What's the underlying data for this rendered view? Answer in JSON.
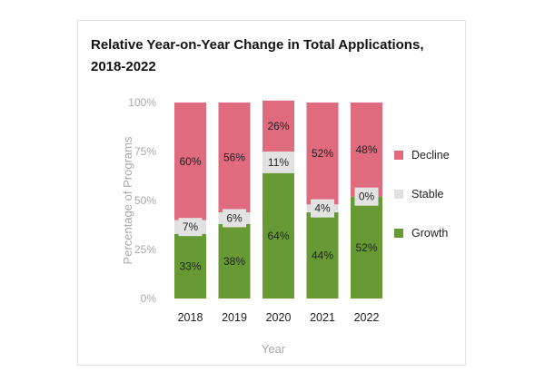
{
  "chart_data": {
    "type": "bar",
    "stacked": true,
    "title": "Relative Year-on-Year Change in Total Applications, 2018-2022",
    "title_lines": [
      "Relative Year-on-Year Change in Total Applications,",
      "2018-2022"
    ],
    "xlabel": "Year",
    "ylabel": "Percentage of Programs",
    "ylim": [
      0,
      100
    ],
    "yticks": [
      "0%",
      "25%",
      "50%",
      "75%",
      "100%"
    ],
    "categories": [
      "2018",
      "2019",
      "2020",
      "2021",
      "2022"
    ],
    "series": [
      {
        "name": "Growth",
        "color": "#679a34",
        "values": [
          33,
          38,
          64,
          44,
          52
        ],
        "labels": [
          "33%",
          "38%",
          "64%",
          "44%",
          "52%"
        ]
      },
      {
        "name": "Stable",
        "color": "#e0e0e0",
        "values": [
          7,
          6,
          11,
          4,
          0
        ],
        "labels": [
          "7%",
          "6%",
          "11%",
          "4%",
          "0%"
        ]
      },
      {
        "name": "Decline",
        "color": "#e06a7e",
        "values": [
          60,
          56,
          26,
          52,
          48
        ],
        "labels": [
          "60%",
          "56%",
          "26%",
          "52%",
          "48%"
        ]
      }
    ],
    "legend": {
      "position": "right",
      "order": [
        "Decline",
        "Stable",
        "Growth"
      ]
    }
  }
}
